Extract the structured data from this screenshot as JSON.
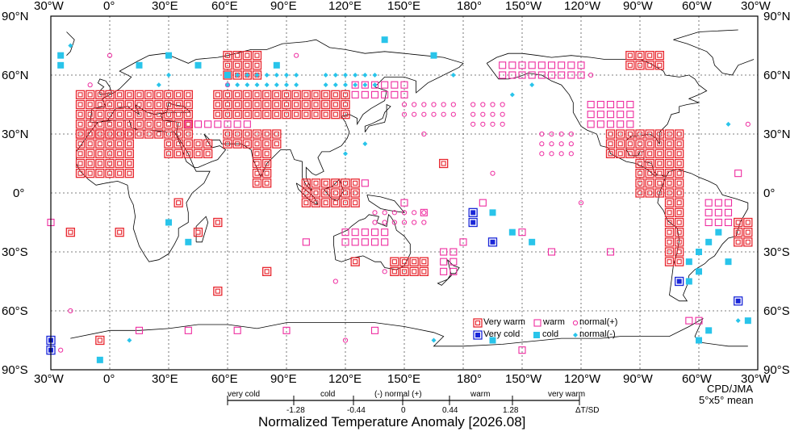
{
  "map": {
    "lon_labels": [
      "30°W",
      "0°",
      "30°E",
      "60°E",
      "90°E",
      "120°E",
      "150°E",
      "180°",
      "150°W",
      "120°W",
      "90°W",
      "60°W",
      "30°W"
    ],
    "lat_labels": [
      "90°N",
      "60°N",
      "30°N",
      "0°",
      "30°S",
      "60°S",
      "90°S"
    ],
    "colors": {
      "very_warm": "#e8262e",
      "warm": "#ee2ca0",
      "normal_plus": "#ee2ca0",
      "very_cold": "#1a27d8",
      "cold": "#29c4ea",
      "normal_minus": "#29c4ea",
      "coast": "#000000",
      "grid": "#555555"
    }
  },
  "legend": {
    "items": [
      {
        "label": "Very warm",
        "category": "very_warm",
        "symbol": "double-square"
      },
      {
        "label": "warm",
        "category": "warm",
        "symbol": "open-square"
      },
      {
        "label": "normal(+)",
        "category": "normal_plus",
        "symbol": "open-circle"
      },
      {
        "label": "Very cold",
        "category": "very_cold",
        "symbol": "filled-double-square"
      },
      {
        "label": "cold",
        "category": "cold",
        "symbol": "filled-square"
      },
      {
        "label": "normal(-)",
        "category": "normal_minus",
        "symbol": "filled-diamond"
      }
    ]
  },
  "credit": {
    "line1": "CPD/JMA",
    "line2": "5°x5° mean"
  },
  "scale": {
    "words": [
      "very cold",
      "cold",
      "(-) normal (+)",
      "warm",
      "very warm"
    ],
    "ticks": [
      "-1.28",
      "-0.44",
      "0",
      "0.44",
      "1.28"
    ],
    "unit": "ΔT/SD",
    "thresholds": [
      -1.28,
      -0.44,
      0,
      0.44,
      1.28
    ]
  },
  "title": "Normalized Temperature Anomaly [2026.08]"
}
